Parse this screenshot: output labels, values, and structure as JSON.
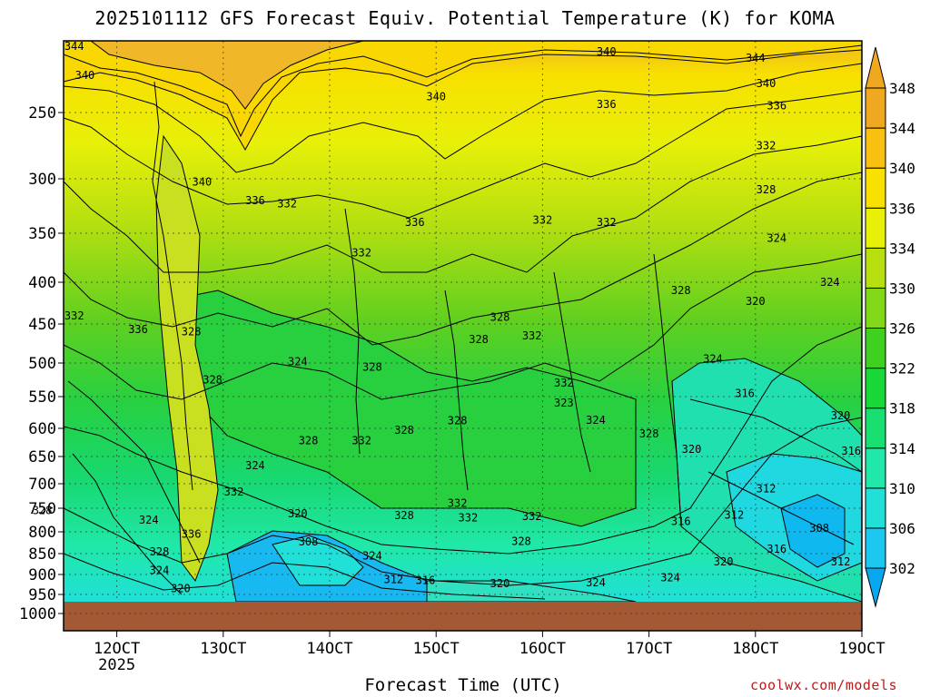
{
  "chart_data": {
    "type": "heatmap",
    "title": "2025101112 GFS Forecast Equiv. Potential Temperature (K) for KOMA",
    "xlabel": "Forecast Time (UTC)",
    "ylabel": "",
    "credit": "coolwx.com/models",
    "x_ticks": [
      "12OCT",
      "13OCT",
      "14OCT",
      "15OCT",
      "16OCT",
      "17OCT",
      "18OCT",
      "19OCT"
    ],
    "x_tick_sublabel": "2025",
    "y_ticks": [
      250,
      300,
      350,
      400,
      450,
      500,
      550,
      600,
      650,
      700,
      750,
      800,
      850,
      900,
      950,
      1000
    ],
    "colorbar": {
      "levels": [
        302,
        306,
        310,
        314,
        318,
        322,
        326,
        330,
        334,
        336,
        340,
        344,
        348
      ],
      "colors": [
        "#08a8f0",
        "#1cc8f0",
        "#20e0d8",
        "#20e8a8",
        "#18e070",
        "#18d838",
        "#40d020",
        "#80d818",
        "#b8e010",
        "#e8f008",
        "#f8e000",
        "#f8c010",
        "#f0a820"
      ]
    },
    "contour_labels": [
      {
        "text": "344",
        "t": 11.6,
        "p": 200
      },
      {
        "text": "340",
        "t": 11.7,
        "p": 222
      },
      {
        "text": "340",
        "t": 15.0,
        "p": 238
      },
      {
        "text": "340",
        "t": 12.8,
        "p": 303
      },
      {
        "text": "336",
        "t": 13.3,
        "p": 320
      },
      {
        "text": "332",
        "t": 13.6,
        "p": 323
      },
      {
        "text": "336",
        "t": 14.8,
        "p": 340
      },
      {
        "text": "332",
        "t": 14.3,
        "p": 370
      },
      {
        "text": "332",
        "t": 11.6,
        "p": 440
      },
      {
        "text": "336",
        "t": 12.2,
        "p": 457
      },
      {
        "text": "328",
        "t": 12.7,
        "p": 460
      },
      {
        "text": "324",
        "t": 13.7,
        "p": 498
      },
      {
        "text": "328",
        "t": 14.4,
        "p": 506
      },
      {
        "text": "328",
        "t": 12.9,
        "p": 525
      },
      {
        "text": "328",
        "t": 15.6,
        "p": 442
      },
      {
        "text": "328",
        "t": 15.4,
        "p": 470
      },
      {
        "text": "332",
        "t": 15.9,
        "p": 465
      },
      {
        "text": "332",
        "t": 16.2,
        "p": 530
      },
      {
        "text": "332",
        "t": 16.6,
        "p": 340
      },
      {
        "text": "332",
        "t": 16.0,
        "p": 338
      },
      {
        "text": "336",
        "t": 16.6,
        "p": 244
      },
      {
        "text": "340",
        "t": 16.6,
        "p": 204
      },
      {
        "text": "344",
        "t": 18.0,
        "p": 209
      },
      {
        "text": "340",
        "t": 18.1,
        "p": 228
      },
      {
        "text": "336",
        "t": 18.2,
        "p": 245
      },
      {
        "text": "332",
        "t": 18.1,
        "p": 275
      },
      {
        "text": "328",
        "t": 18.1,
        "p": 310
      },
      {
        "text": "324",
        "t": 18.2,
        "p": 355
      },
      {
        "text": "324",
        "t": 18.7,
        "p": 400
      },
      {
        "text": "328",
        "t": 17.3,
        "p": 410
      },
      {
        "text": "320",
        "t": 18.0,
        "p": 423
      },
      {
        "text": "324",
        "t": 17.6,
        "p": 495
      },
      {
        "text": "316",
        "t": 17.9,
        "p": 545
      },
      {
        "text": "320",
        "t": 18.8,
        "p": 580
      },
      {
        "text": "316",
        "t": 18.9,
        "p": 640
      },
      {
        "text": "320",
        "t": 17.4,
        "p": 637
      },
      {
        "text": "328",
        "t": 17.0,
        "p": 610
      },
      {
        "text": "312",
        "t": 18.1,
        "p": 710
      },
      {
        "text": "312",
        "t": 17.8,
        "p": 764
      },
      {
        "text": "316",
        "t": 17.3,
        "p": 778
      },
      {
        "text": "308",
        "t": 18.6,
        "p": 792
      },
      {
        "text": "316",
        "t": 18.2,
        "p": 840
      },
      {
        "text": "320",
        "t": 17.7,
        "p": 870
      },
      {
        "text": "312",
        "t": 18.8,
        "p": 870
      },
      {
        "text": "324",
        "t": 17.2,
        "p": 908
      },
      {
        "text": "324",
        "t": 16.5,
        "p": 920
      },
      {
        "text": "320",
        "t": 15.6,
        "p": 923
      },
      {
        "text": "316",
        "t": 14.9,
        "p": 915
      },
      {
        "text": "312",
        "t": 14.6,
        "p": 912
      },
      {
        "text": "324",
        "t": 14.4,
        "p": 855
      },
      {
        "text": "308",
        "t": 13.8,
        "p": 823
      },
      {
        "text": "320",
        "t": 13.7,
        "p": 762
      },
      {
        "text": "328",
        "t": 14.7,
        "p": 765
      },
      {
        "text": "332",
        "t": 15.2,
        "p": 740
      },
      {
        "text": "332",
        "t": 15.3,
        "p": 770
      },
      {
        "text": "332",
        "t": 15.9,
        "p": 767
      },
      {
        "text": "328",
        "t": 15.8,
        "p": 822
      },
      {
        "text": "332",
        "t": 13.1,
        "p": 717
      },
      {
        "text": "324",
        "t": 13.3,
        "p": 667
      },
      {
        "text": "328",
        "t": 13.8,
        "p": 622
      },
      {
        "text": "332",
        "t": 14.3,
        "p": 622
      },
      {
        "text": "328",
        "t": 14.7,
        "p": 603
      },
      {
        "text": "328",
        "t": 15.2,
        "p": 588
      },
      {
        "text": "323",
        "t": 16.2,
        "p": 560
      },
      {
        "text": "324",
        "t": 16.5,
        "p": 587
      },
      {
        "text": "328",
        "t": 11.3,
        "p": 755
      },
      {
        "text": "324",
        "t": 12.3,
        "p": 775
      },
      {
        "text": "336",
        "t": 12.7,
        "p": 805
      },
      {
        "text": "328",
        "t": 12.4,
        "p": 846
      },
      {
        "text": "324",
        "t": 12.4,
        "p": 890
      },
      {
        "text": "320",
        "t": 12.6,
        "p": 935
      }
    ]
  }
}
